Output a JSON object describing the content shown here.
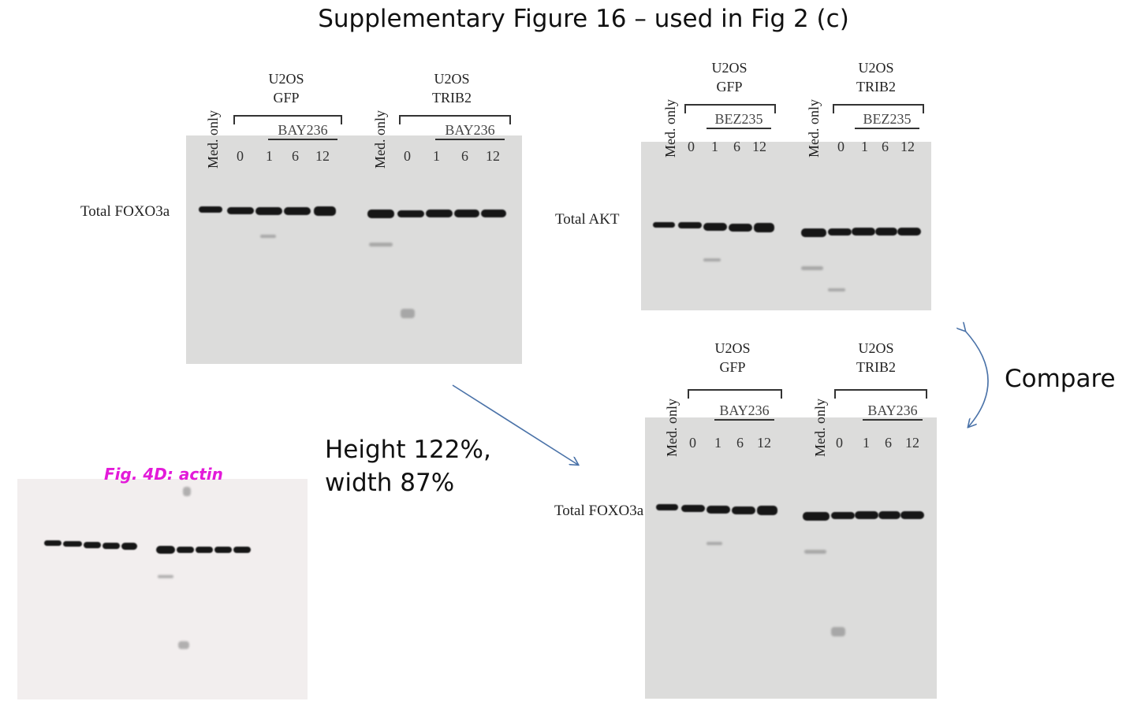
{
  "title": "Supplementary Figure 16 – used in Fig 2 (c)",
  "panels": {
    "top_left": {
      "row_label": "Total FOXO3a",
      "control_label": "Med. only",
      "groups": [
        {
          "name_line1": "U2OS",
          "name_line2": "GFP",
          "treatment": "BAY236",
          "lanes": [
            "0",
            "1",
            "6",
            "12"
          ]
        },
        {
          "name_line1": "U2OS",
          "name_line2": "TRIB2",
          "treatment": "BAY236",
          "lanes": [
            "0",
            "1",
            "6",
            "12"
          ]
        }
      ]
    },
    "top_right": {
      "row_label": "Total AKT",
      "control_label": "Med. only",
      "groups": [
        {
          "name_line1": "U2OS",
          "name_line2": "GFP",
          "treatment": "BEZ235",
          "lanes": [
            "0",
            "1",
            "6",
            "12"
          ]
        },
        {
          "name_line1": "U2OS",
          "name_line2": "TRIB2",
          "treatment": "BEZ235",
          "lanes": [
            "0",
            "1",
            "6",
            "12"
          ]
        }
      ]
    },
    "bottom_right": {
      "row_label": "Total FOXO3a",
      "control_label": "Med. only",
      "groups": [
        {
          "name_line1": "U2OS",
          "name_line2": "GFP",
          "treatment": "BAY236",
          "lanes": [
            "0",
            "1",
            "6",
            "12"
          ]
        },
        {
          "name_line1": "U2OS",
          "name_line2": "TRIB2",
          "treatment": "BAY236",
          "lanes": [
            "0",
            "1",
            "6",
            "12"
          ]
        }
      ]
    },
    "bottom_left": {
      "caption": "Fig. 4D: actin"
    }
  },
  "notes": {
    "resize_line1": "Height 122%,",
    "resize_line2": "width 87%",
    "compare": "Compare"
  },
  "colors": {
    "caption_magenta": "#e31ad9",
    "arrow_blue": "#4a72a8"
  }
}
